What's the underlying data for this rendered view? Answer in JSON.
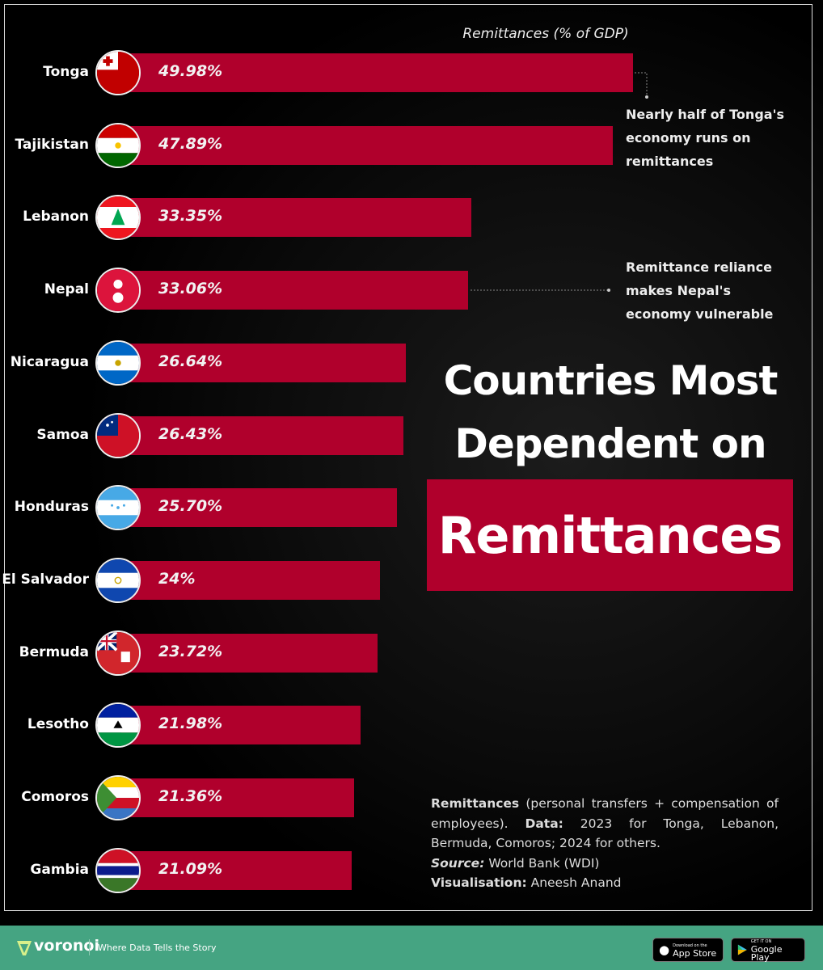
{
  "chart_data": {
    "type": "bar",
    "orientation": "horizontal",
    "xlabel": "Remittances (% of GDP)",
    "categories": [
      "Tonga",
      "Tajikistan",
      "Lebanon",
      "Nepal",
      "Nicaragua",
      "Samoa",
      "Honduras",
      "El Salvador",
      "Bermuda",
      "Lesotho",
      "Comoros",
      "Gambia"
    ],
    "values": [
      49.98,
      47.89,
      33.35,
      33.06,
      26.64,
      26.43,
      25.7,
      24,
      23.72,
      21.98,
      21.36,
      21.09
    ],
    "value_labels": [
      "49.98%",
      "47.89%",
      "33.35%",
      "33.06%",
      "26.64%",
      "26.43%",
      "25.70%",
      "24%",
      "23.72%",
      "21.98%",
      "21.36%",
      "21.09%"
    ],
    "bar_color": "#b0002c",
    "grid": false,
    "annotations": [
      {
        "target": "Tonga",
        "text": "Nearly half of Tonga's economy runs on remittances"
      },
      {
        "target": "Nepal",
        "text": "Remittance reliance makes Nepal's economy vulnerable"
      }
    ]
  },
  "title": {
    "line1": "Countries Most",
    "line2": "Dependent on",
    "highlight": "Remittances"
  },
  "notes": {
    "remittances_bold": "Remittances",
    "remittances_text": " (personal transfers + compensation of employees). ",
    "data_bold": "Data:",
    "data_text": " 2023 for Tonga, Lebanon, Bermuda, Comoros; 2024 for others.",
    "source_label": "Source:",
    "source_text": " World Bank (WDI)",
    "vis_label": "Visualisation:",
    "vis_text": " Aneesh Anand"
  },
  "footer": {
    "brand": "voronoi",
    "tagline": "Where Data Tells the Story",
    "app_store_small": "Download on the",
    "app_store": "App Store",
    "google_small": "GET IT ON",
    "google": "Google Play",
    "color": "#45a482"
  }
}
